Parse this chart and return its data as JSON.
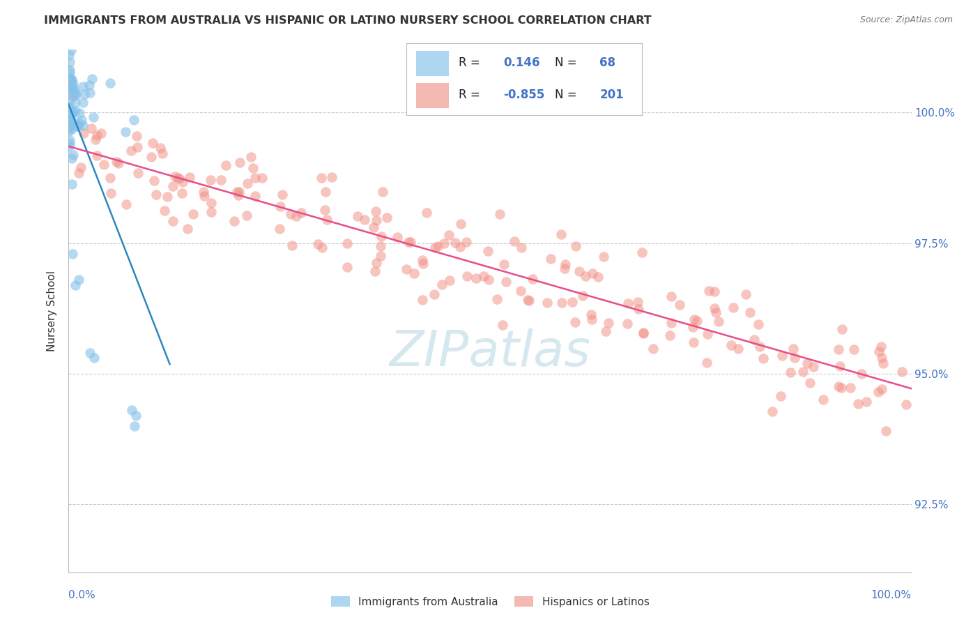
{
  "title": "IMMIGRANTS FROM AUSTRALIA VS HISPANIC OR LATINO NURSERY SCHOOL CORRELATION CHART",
  "source": "Source: ZipAtlas.com",
  "ylabel": "Nursery School",
  "y_ticks": [
    92.5,
    95.0,
    97.5,
    100.0
  ],
  "y_tick_labels": [
    "92.5%",
    "95.0%",
    "97.5%",
    "100.0%"
  ],
  "x_range": [
    0.0,
    100.0
  ],
  "y_range": [
    91.2,
    101.2
  ],
  "legend_r_blue": "0.146",
  "legend_n_blue": "68",
  "legend_r_pink": "-0.855",
  "legend_n_pink": "201",
  "blue_color": "#85C1E9",
  "pink_color": "#F1948A",
  "blue_line_color": "#2E86C1",
  "pink_line_color": "#E74C8B",
  "watermark_color": "#D5E8F0",
  "grid_color": "#CCCCCC",
  "label_color": "#4472C4",
  "text_color": "#333333",
  "title_fontsize": 11.5,
  "axis_label_fontsize": 11,
  "legend_fontsize": 12
}
